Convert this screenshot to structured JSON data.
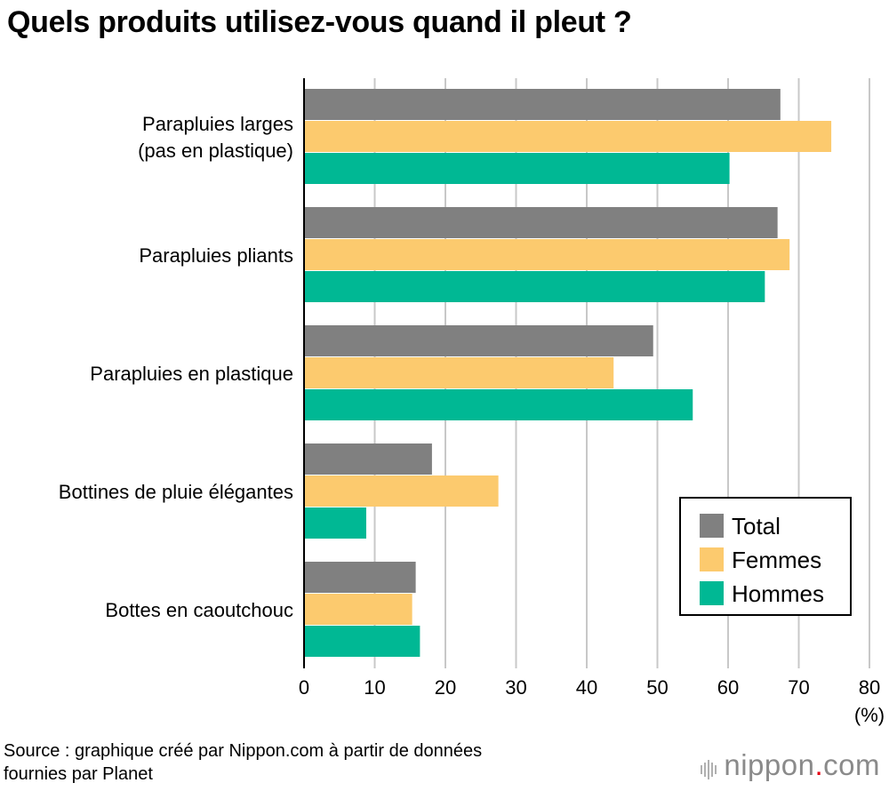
{
  "title": "Quels produits utilisez-vous quand il pleut ?",
  "chart_data": {
    "type": "bar",
    "orientation": "horizontal",
    "categories": [
      [
        "Parapluies larges",
        "(pas en plastique)"
      ],
      [
        "Parapluies pliants"
      ],
      [
        "Parapluies en plastique"
      ],
      [
        "Bottines de pluie élégantes"
      ],
      [
        "Bottes en caoutchouc"
      ]
    ],
    "series": [
      {
        "name": "Total",
        "color": "#808080",
        "values": [
          67.4,
          67.0,
          49.4,
          18.1,
          15.8
        ]
      },
      {
        "name": "Femmes",
        "color": "#fcca6e",
        "values": [
          74.6,
          68.7,
          43.8,
          27.5,
          15.3
        ]
      },
      {
        "name": "Hommes",
        "color": "#00b894",
        "values": [
          60.2,
          65.2,
          55.0,
          8.8,
          16.4
        ]
      }
    ],
    "xlim": [
      0,
      80
    ],
    "xticks": [
      0,
      10,
      20,
      30,
      40,
      50,
      60,
      70,
      80
    ],
    "xlabel": "(%)",
    "grid": true,
    "legend_position": "bottom-right"
  },
  "source": {
    "line1": "Source : graphique créé par Nippon.com à partir de données",
    "line2": "fournies par Planet"
  },
  "brand": {
    "name": "nippon",
    "dot": ".",
    "suffix": "com"
  }
}
